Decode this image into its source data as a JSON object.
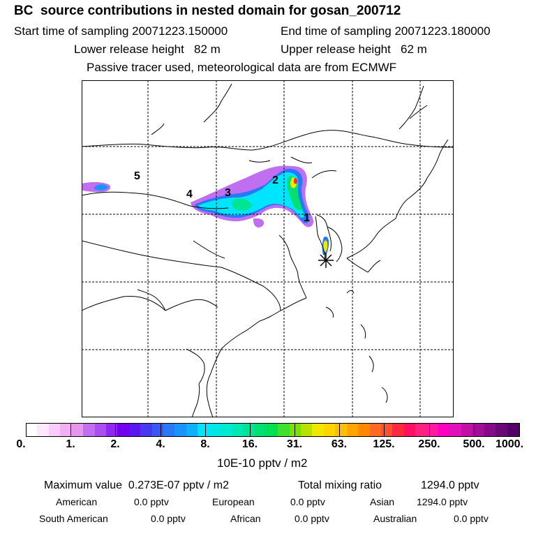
{
  "header": {
    "title": "BC  source contributions in nested domain for gosan_200712",
    "start_label": "Start time of sampling 20071223.150000",
    "end_label": "End time of sampling 20071223.180000",
    "lower_label": "Lower release height   82 m",
    "upper_label": "Upper release height   62 m",
    "tracer_line": "Passive tracer used, meteorological data are from ECMWF"
  },
  "map": {
    "source_labels": [
      "5",
      "4",
      "3",
      "2",
      "1"
    ],
    "receptor_marker": "star-marker"
  },
  "colorbar": {
    "colors": [
      "#ffffff",
      "#fde8fd",
      "#f9ccf9",
      "#f2b0f2",
      "#e597ee",
      "#c06ff0",
      "#a94ff0",
      "#9028f0",
      "#7300ee",
      "#5818ef",
      "#4738f2",
      "#3758f5",
      "#2878f8",
      "#1a94fb",
      "#10b0fd",
      "#00e5ff",
      "#00e7e5",
      "#00ead0",
      "#00e7b2",
      "#00e494",
      "#00e070",
      "#00e050",
      "#40e030",
      "#7ee000",
      "#b9e000",
      "#f0e800",
      "#ffd400",
      "#ffbe00",
      "#ffa500",
      "#ff8800",
      "#ff6a20",
      "#ff5030",
      "#ff2a40",
      "#ff1060",
      "#ff2080",
      "#ff1aa0",
      "#ff00c0",
      "#e010b8",
      "#c010a8",
      "#a00e98",
      "#850a88",
      "#6a0878",
      "#520066"
    ],
    "tick_labels": [
      "0.",
      "1.",
      "2.",
      "4.",
      "8.",
      "16.",
      "31.",
      "63.",
      "125.",
      "250.",
      "500.",
      "1000."
    ],
    "units": "10E-10 pptv / m2"
  },
  "stats": {
    "max_label": "Maximum value  0.273E-07 pptv / m2",
    "total_label": "Total mixing ratio",
    "total_value": "1294.0 pptv",
    "regions": [
      {
        "name": "American",
        "value": "0.0 pptv"
      },
      {
        "name": "European",
        "value": "0.0 pptv"
      },
      {
        "name": "Asian",
        "value": "1294.0 pptv"
      },
      {
        "name": "South American",
        "value": "0.0 pptv"
      },
      {
        "name": "African",
        "value": "0.0 pptv"
      },
      {
        "name": "Australian",
        "value": "0.0 pptv"
      }
    ]
  }
}
